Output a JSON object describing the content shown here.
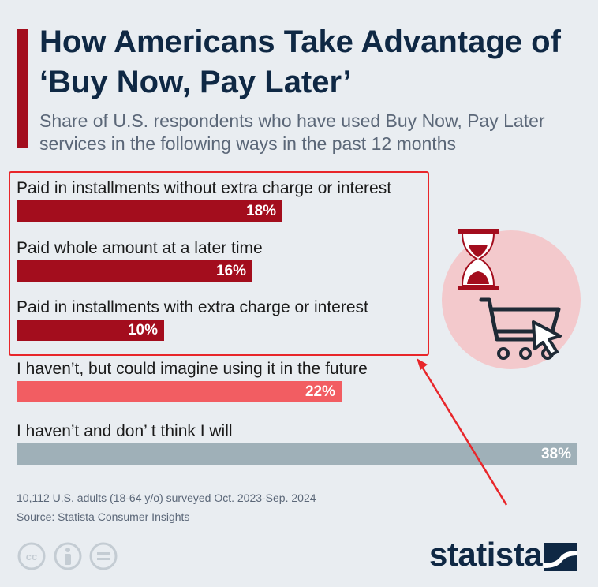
{
  "title": "How Americans Take Advantage of ‘Buy Now, Pay Later’",
  "subtitle": "Share of U.S. respondents who have used Buy Now, Pay Later services in the following ways in the past 12 months",
  "chart_data": {
    "type": "bar",
    "orientation": "horizontal",
    "title": "How Americans Take Advantage of ‘Buy Now, Pay Later’",
    "xlabel": "",
    "ylabel": "",
    "xlim": [
      0,
      38
    ],
    "grid": false,
    "categories": [
      "Paid in installments without extra charge or interest",
      "Paid whole amount at a later time",
      "Paid in installments with extra charge or interest",
      "I haven’t, but could imagine using it in the future",
      "I haven’t and don’ t think I will"
    ],
    "values": [
      18,
      16,
      10,
      22,
      38
    ],
    "value_labels": [
      "18%",
      "16%",
      "10%",
      "22%",
      "38%"
    ],
    "colors": [
      "#a30d1d",
      "#a30d1d",
      "#a30d1d",
      "#f25d62",
      "#9fb0b8"
    ]
  },
  "footer": {
    "note": "10,112 U.S. adults (18-64 y/o) surveyed Oct. 2023-Sep. 2024",
    "source": "Source: Statista Consumer Insights"
  },
  "brand": {
    "name": "statista"
  },
  "icons": {
    "illustration": "hourglass-shopping-cart-icon",
    "license": [
      "creative-commons-icon",
      "attribution-icon",
      "no-derivatives-icon"
    ]
  },
  "colors": {
    "accent": "#a30d1d",
    "title": "#0f2844",
    "highlight": "#e8262a",
    "background": "#e9edf1"
  }
}
